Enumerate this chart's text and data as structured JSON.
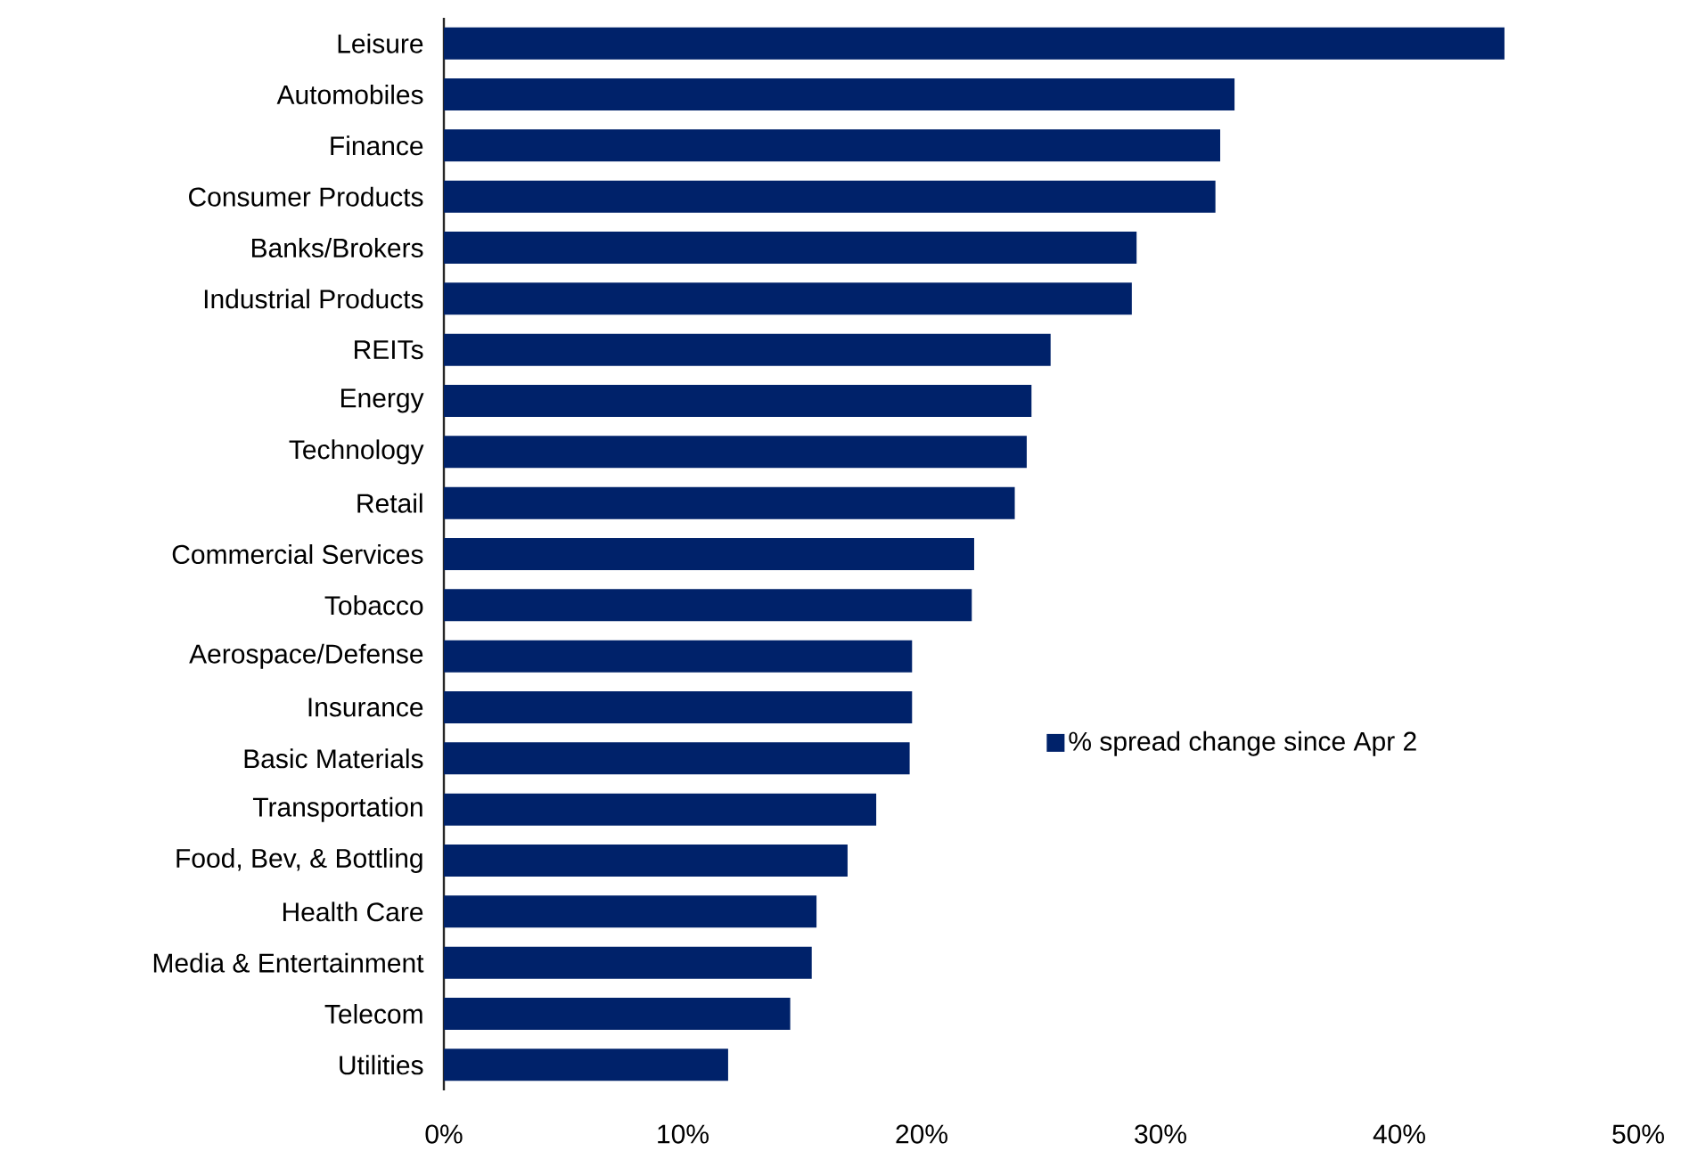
{
  "chart_data": {
    "type": "bar",
    "orientation": "horizontal",
    "categories": [
      "Leisure",
      "Automobiles",
      "Finance",
      "Consumer Products",
      "Banks/Brokers",
      "Industrial Products",
      "REITs",
      "Energy",
      "Technology",
      "Retail",
      "Commercial Services",
      "Tobacco",
      "Aerospace/Defense",
      "Insurance",
      "Basic Materials",
      "Transportation",
      "Food, Bev, & Bottling",
      "Health Care",
      "Media & Entertainment",
      "Telecom",
      "Utilities"
    ],
    "series": [
      {
        "name": "% spread change since Apr 2",
        "color": "#00226a",
        "values": [
          44.4,
          33.1,
          32.5,
          32.3,
          29.0,
          28.8,
          25.4,
          24.6,
          24.4,
          23.9,
          22.2,
          22.1,
          19.6,
          19.6,
          19.5,
          18.1,
          16.9,
          15.6,
          15.4,
          14.5,
          11.9
        ]
      }
    ],
    "xlim": [
      0,
      50
    ],
    "xticks": [
      {
        "value": 0,
        "label": "0%"
      },
      {
        "value": 10,
        "label": "10%"
      },
      {
        "value": 20,
        "label": "20%"
      },
      {
        "value": 30,
        "label": "30%"
      },
      {
        "value": 40,
        "label": "40%"
      },
      {
        "value": 50,
        "label": "50%"
      }
    ],
    "grid": false,
    "legend": "right"
  }
}
